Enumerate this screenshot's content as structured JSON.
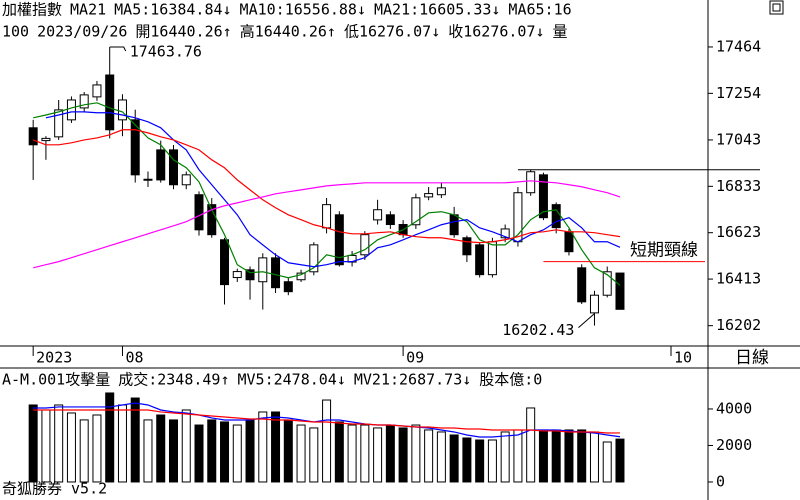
{
  "period": "日線",
  "footer": "奇狐勝券 v5.2",
  "chart_data": [
    {
      "type": "candlestick",
      "title": "加權指數",
      "subtitle": "MA21",
      "info": [
        "100",
        "2023/09/26",
        "開16440.26↑",
        "高16440.26↑",
        "低16276.07↓",
        "收16276.07↓",
        "量"
      ],
      "xlim": [
        -2.6,
        52.9
      ],
      "xticks": [
        {
          "value": 0,
          "label": "2023"
        },
        {
          "value": 7,
          "label": "08"
        },
        {
          "value": 29,
          "label": "09"
        },
        {
          "value": 50,
          "label": "10"
        }
      ],
      "ylim": [
        16110,
        17577
      ],
      "yticks": [
        17464,
        17254,
        17043,
        16833,
        16623,
        16413,
        16202
      ],
      "up_color": "#ffffff",
      "down_color": "#000000",
      "open": [
        17098,
        17040,
        17057,
        17134,
        17188,
        17238,
        17337,
        17134,
        17134,
        16862,
        16998,
        16998,
        16840,
        16795,
        16750,
        16591,
        16420,
        16455,
        16401,
        16509,
        16401,
        16410,
        16446,
        16645,
        16704,
        16490,
        16523,
        16681,
        16704,
        16660,
        16659,
        16785,
        16795,
        16704,
        16600,
        16568,
        16433,
        16600,
        16582,
        16804,
        16885,
        16750,
        16627,
        16464,
        16260,
        16340,
        16440.26
      ],
      "high": [
        17134,
        17060,
        17224,
        17240,
        17260,
        17310,
        17463.76,
        17250,
        17180,
        16900,
        17040,
        17020,
        16900,
        16810,
        16780,
        16600,
        16460,
        16470,
        16530,
        16530,
        16420,
        16455,
        16580,
        16780,
        16720,
        16540,
        16630,
        16772,
        16720,
        16680,
        16800,
        16830,
        16850,
        16740,
        16610,
        16580,
        16600,
        16660,
        16830,
        16908,
        16895,
        16760,
        16640,
        16480,
        16360,
        16470,
        16440.26
      ],
      "low": [
        16862,
        16953,
        17043,
        17120,
        17170,
        17220,
        17050,
        17060,
        16850,
        16830,
        16850,
        16820,
        16820,
        16610,
        16600,
        16298,
        16400,
        16320,
        16275,
        16350,
        16340,
        16400,
        16430,
        16620,
        16470,
        16470,
        16500,
        16660,
        16640,
        16600,
        16640,
        16770,
        16780,
        16600,
        16490,
        16420,
        16420,
        16580,
        16560,
        16790,
        16680,
        16620,
        16520,
        16300,
        16202.43,
        16330,
        16276.07
      ],
      "close": [
        17021,
        17050,
        17179,
        17224,
        17247,
        17292,
        17089,
        17224,
        16885,
        16865,
        16862,
        16840,
        16885,
        16636,
        16614,
        16388,
        16447,
        16410,
        16509,
        16374,
        16356,
        16440,
        16568,
        16750,
        16478,
        16520,
        16614,
        16727,
        16660,
        16614,
        16781,
        16800,
        16826,
        16614,
        16523,
        16433,
        16582,
        16640,
        16804,
        16899,
        16691,
        16646,
        16537,
        16310,
        16340,
        16446,
        16276.07
      ],
      "series": [
        {
          "label": "MA5:16384.84↓",
          "color": "#008000",
          "values": [
            17143,
            17156,
            17170,
            17188,
            17202,
            17211,
            17188,
            17170,
            17111,
            17052,
            17021,
            16953,
            16917,
            16853,
            16727,
            16614,
            16478,
            16442,
            16446,
            16433,
            16419,
            16433,
            16464,
            16523,
            16510,
            16523,
            16546,
            16591,
            16614,
            16636,
            16673,
            16713,
            16718,
            16704,
            16673,
            16591,
            16568,
            16568,
            16614,
            16682,
            16718,
            16727,
            16645,
            16546,
            16464,
            16433,
            16384.84
          ]
        },
        {
          "label": "MA10:16556.88↓",
          "color": "#0000ff",
          "values": [
            null,
            17143,
            17156,
            17170,
            17170,
            17166,
            17166,
            17156,
            17143,
            17125,
            17098,
            17043,
            16998,
            16908,
            16840,
            16772,
            16704,
            16614,
            16568,
            16523,
            16487,
            16478,
            16469,
            16478,
            16492,
            16492,
            16510,
            16555,
            16568,
            16591,
            16614,
            16636,
            16659,
            16673,
            16682,
            16645,
            16627,
            16605,
            16582,
            16614,
            16636,
            16673,
            16691,
            16645,
            16582,
            16582,
            16556.88
          ]
        },
        {
          "label": "MA21:16605.33↓",
          "color": "#ff0000",
          "values": [
            17043,
            17021,
            17021,
            17030,
            17043,
            17052,
            17066,
            17089,
            17089,
            17075,
            17057,
            17043,
            17021,
            16998,
            16953,
            16917,
            16862,
            16817,
            16772,
            16736,
            16704,
            16682,
            16659,
            16645,
            16627,
            16618,
            16618,
            16623,
            16627,
            16614,
            16605,
            16600,
            16600,
            16591,
            16582,
            16578,
            16582,
            16591,
            16605,
            16623,
            16627,
            16636,
            16627,
            16627,
            16623,
            16614,
            16605.33
          ]
        },
        {
          "label": "MA65:16",
          "color": "#ff00ff",
          "values": [
            16464,
            16478,
            16492,
            16510,
            16528,
            16546,
            16564,
            16582,
            16600,
            16618,
            16636,
            16654,
            16673,
            16700,
            16727,
            16745,
            16758,
            16772,
            16785,
            16799,
            16808,
            16817,
            16826,
            16835,
            16840,
            16844,
            16849,
            16849,
            16849,
            16849,
            16849,
            16849,
            16849,
            16849,
            16849,
            16849,
            16849,
            16849,
            16853,
            16858,
            16853,
            16849,
            16840,
            16831,
            16817,
            16804,
            16785
          ]
        }
      ],
      "hlines": [
        {
          "value": 16908,
          "x": 38,
          "color": "#000000"
        },
        {
          "value": 16492,
          "x": 40,
          "color": "#ff0000",
          "label": "短期頸線"
        }
      ],
      "annotations": [
        {
          "x": 6,
          "y": 17463.76
        },
        {
          "x": 44,
          "y": 16202.43
        }
      ]
    },
    {
      "type": "bar",
      "title": "A-M.001攻擊量",
      "label": "成交:2348.49↑",
      "label_color": "#008000",
      "xlim": [
        -2.6,
        52.9
      ],
      "ylim": [
        -440,
        4930
      ],
      "yticks": [
        4000,
        2000,
        0
      ],
      "values": [
        4219,
        3945,
        4219,
        3780,
        3400,
        3670,
        4877,
        4219,
        4600,
        3400,
        3670,
        3400,
        3945,
        3120,
        3400,
        3290,
        3120,
        3400,
        3835,
        3835,
        3400,
        3120,
        2960,
        4490,
        3290,
        3120,
        3120,
        2960,
        3120,
        2960,
        3120,
        2850,
        2740,
        2575,
        2410,
        2300,
        2300,
        2740,
        2850,
        4055,
        2850,
        2850,
        2850,
        2850,
        2740,
        2190,
        2348.49
      ],
      "series": [
        {
          "label": "MV5:2478.04↓",
          "color": "#0000ff",
          "values": [
            4055,
            4055,
            4110,
            4110,
            4110,
            4110,
            4110,
            4219,
            4329,
            4219,
            3945,
            3836,
            3781,
            3671,
            3507,
            3397,
            3397,
            3397,
            3507,
            3562,
            3507,
            3397,
            3288,
            3397,
            3397,
            3288,
            3178,
            3123,
            3123,
            3068,
            3014,
            2959,
            2849,
            2740,
            2575,
            2466,
            2466,
            2521,
            2575,
            2849,
            2849,
            2849,
            2795,
            2740,
            2685,
            2575,
            2478.04
          ]
        },
        {
          "label": "MV21:2687.73↓",
          "color": "#ff0000",
          "values": [
            3945,
            3945,
            3945,
            3945,
            3945,
            3945,
            3945,
            3945,
            3945,
            3945,
            3836,
            3781,
            3726,
            3671,
            3616,
            3562,
            3507,
            3452,
            3452,
            3397,
            3397,
            3342,
            3288,
            3288,
            3233,
            3178,
            3178,
            3123,
            3123,
            3068,
            3014,
            3014,
            2959,
            2959,
            2904,
            2904,
            2849,
            2849,
            2849,
            2849,
            2795,
            2795,
            2740,
            2740,
            2740,
            2685,
            2687.73
          ]
        }
      ],
      "notes": [
        {
          "text": "股本億:0",
          "color": "#ff00ff"
        }
      ]
    }
  ]
}
